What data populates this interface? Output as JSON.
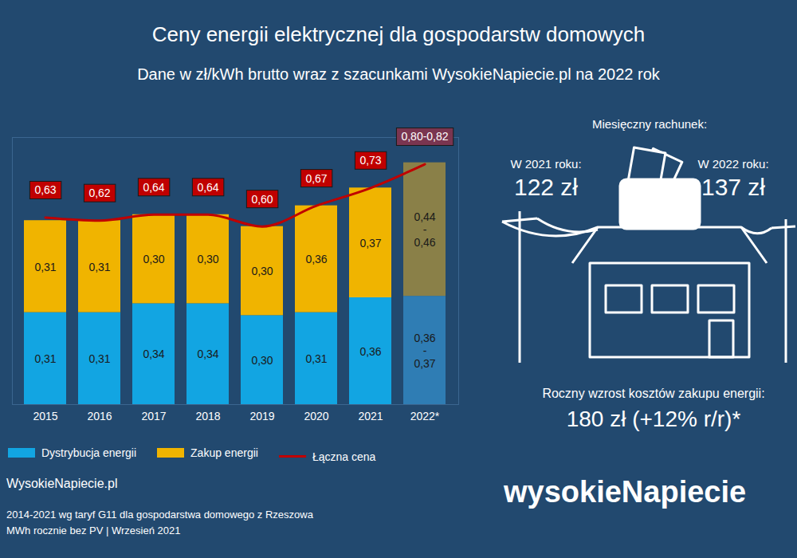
{
  "chart_data": {
    "type": "bar",
    "title": "Ceny energii elektrycznej dla gospodarstw domowych",
    "subtitle": "Dane w zł/kWh brutto wraz z szacunkami WysokieNapiecie.pl na 2022 rok",
    "stacked": true,
    "data_labels": true,
    "tick_labels": "x",
    "legend": "bottom",
    "categories": [
      "2015",
      "2016",
      "2017",
      "2018",
      "2019",
      "2020",
      "2021",
      "2022*"
    ],
    "ylim": [
      0,
      0.9
    ],
    "yticks": [],
    "series": [
      {
        "name": "Dystrybucja energii",
        "type": "bar",
        "color": "#12a5e2",
        "colors": [
          "#12a5e2",
          "#12a5e2",
          "#12a5e2",
          "#12a5e2",
          "#12a5e2",
          "#12a5e2",
          "#12a5e2",
          "#2f7db4"
        ],
        "values": [
          0.31,
          0.31,
          0.34,
          0.34,
          0.3,
          0.31,
          0.36,
          0.365
        ],
        "value_labels": [
          "0,31",
          "0,31",
          "0,34",
          "0,34",
          "0,30",
          "0,31",
          "0,36",
          "0,36-0,37"
        ]
      },
      {
        "name": "Zakup energii",
        "type": "bar",
        "color": "#f0b400",
        "colors": [
          "#f0b400",
          "#f0b400",
          "#f0b400",
          "#f0b400",
          "#f0b400",
          "#f0b400",
          "#f0b400",
          "#8a8048"
        ],
        "values": [
          0.31,
          0.31,
          0.3,
          0.3,
          0.3,
          0.36,
          0.37,
          0.45
        ],
        "value_labels": [
          "0,31",
          "0,31",
          "0,30",
          "0,30",
          "0,30",
          "0,36",
          "0,37",
          "0,44-0,46"
        ]
      },
      {
        "name": "Łączna cena",
        "type": "line",
        "color": "#c00000",
        "colors": [
          "#c00000",
          "#c00000",
          "#c00000",
          "#c00000",
          "#c00000",
          "#c00000",
          "#c00000",
          "#7a3550"
        ],
        "values": [
          0.63,
          0.62,
          0.64,
          0.64,
          0.6,
          0.67,
          0.73,
          0.81
        ],
        "value_labels": [
          "0,63",
          "0,62",
          "0,64",
          "0,64",
          "0,60",
          "0,67",
          "0,73",
          "0,80-0,82"
        ]
      }
    ]
  },
  "bill": {
    "heading": "Miesięczny rachunek:",
    "left": {
      "label": "W 2021 roku:",
      "amount": "122 zł"
    },
    "right": {
      "label": "W 2022 roku:",
      "amount": "137 zł"
    }
  },
  "increase": {
    "label": "Roczny wzrost kosztów zakupu energii:",
    "amount": "180 zł (+12% r/r)*"
  },
  "logo": "wysokieNapiecie",
  "source": "WysokieNapiecie.pl",
  "notes": [
    "2014-2021 wg taryf G11 dla gospodarstwa domowego z Rzeszowa",
    "MWh rocznie bez PV | Wrzesień 2021"
  ]
}
